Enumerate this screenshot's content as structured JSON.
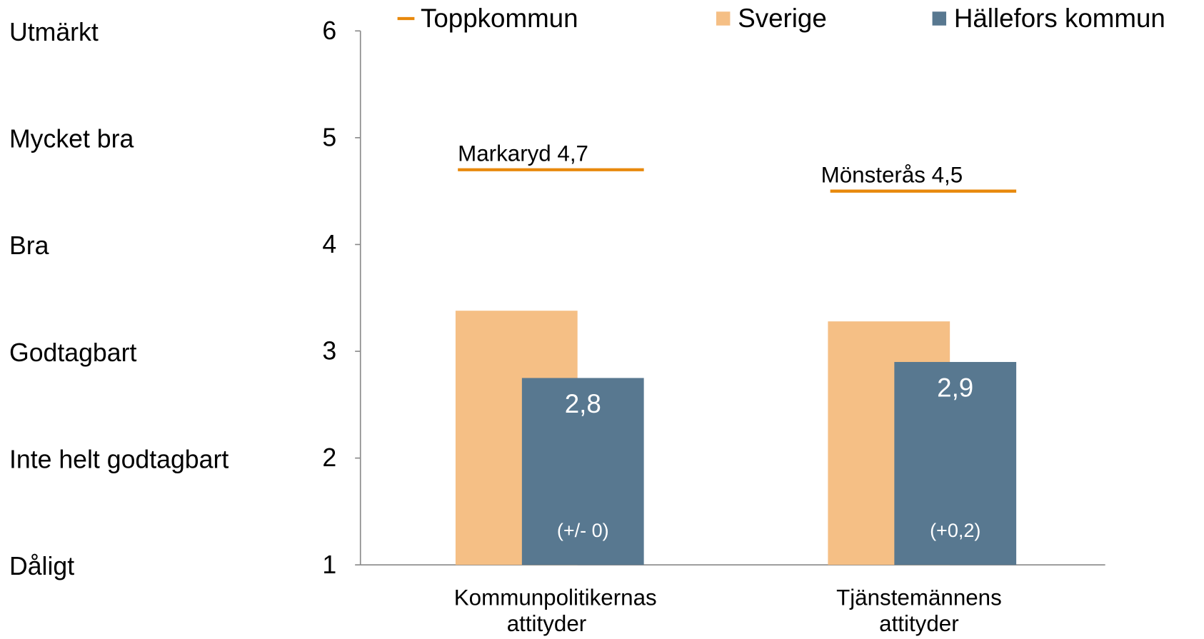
{
  "chart_data": {
    "type": "bar",
    "categories": [
      "Kommunpolitikernas attityder",
      "Tjänstemännens attityder"
    ],
    "series": [
      {
        "name": "Sverige",
        "color": "#f5bf85",
        "values": [
          3.38,
          3.28
        ]
      },
      {
        "name": "Hällefors kommun",
        "color": "#587890",
        "values": [
          2.75,
          2.9
        ],
        "value_labels": [
          "2,8",
          "2,9"
        ],
        "change_labels": [
          "(+/- 0)",
          "(+0,2)"
        ]
      },
      {
        "name": "Toppkommun",
        "color": "#e8890c",
        "marker": "line",
        "values": [
          4.7,
          4.5
        ],
        "value_labels": [
          "Markaryd 4,7",
          "Mönsterås 4,5"
        ]
      }
    ],
    "ylim": [
      1,
      6
    ],
    "yticks": [
      1,
      2,
      3,
      4,
      5,
      6
    ],
    "ytick_levels": [
      "Dåligt",
      "Inte helt godtagbart",
      "Godtagbart",
      "Bra",
      "Mycket bra",
      "Utmärkt"
    ],
    "legend": "top"
  }
}
